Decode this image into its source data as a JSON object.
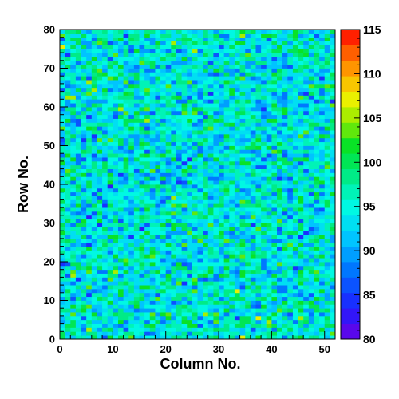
{
  "chart_data": {
    "type": "heatmap",
    "title": "",
    "xlabel": "Column No.",
    "ylabel": "Row No.",
    "xlim": [
      0,
      52
    ],
    "ylim": [
      0,
      80
    ],
    "n_columns": 52,
    "n_rows": 80,
    "x_ticks": [
      0,
      10,
      20,
      30,
      40,
      50
    ],
    "y_ticks": [
      0,
      10,
      20,
      30,
      40,
      50,
      60,
      70,
      80
    ],
    "colorbar": {
      "range": [
        80,
        115
      ],
      "ticks": [
        80,
        85,
        90,
        95,
        100,
        105,
        110,
        115
      ],
      "n_bins": 20
    },
    "value_summary": {
      "typical_min": 82,
      "typical_max": 114,
      "mean_approx": 94
    },
    "grid": false,
    "legend": "none"
  }
}
